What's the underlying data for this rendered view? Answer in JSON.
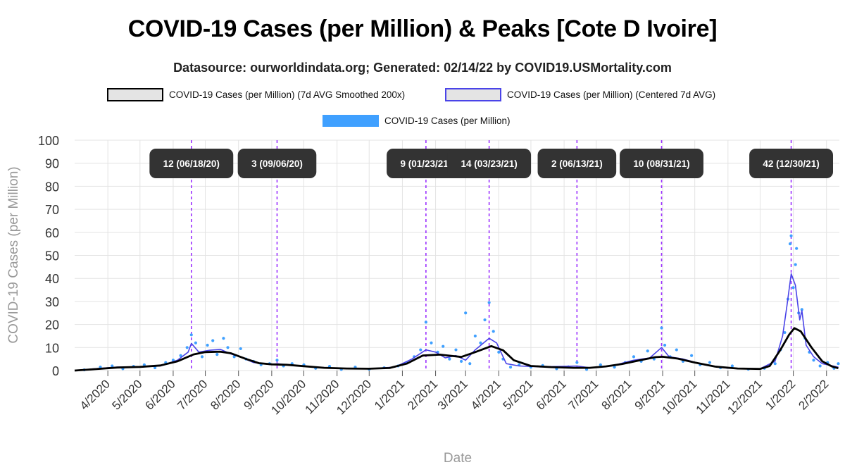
{
  "header": {
    "title": "COVID-19 Cases (per Million) & Peaks [Cote D Ivoire]",
    "subtitle": "Datasource: ourworldindata.org; Generated: 02/14/22 by COVID19.USMortality.com"
  },
  "legend": {
    "smoothed": "COVID-19 Cases (per Million) (7d AVG Smoothed 200x)",
    "centered": "COVID-19 Cases (per Million) (Centered 7d AVG)",
    "daily": "COVID-19 Cases (per Million)"
  },
  "colors": {
    "smoothed": "#000000",
    "centered": "#4a44e8",
    "daily": "#3fa0ff",
    "peak_line": "#9b30ff",
    "peak_label_bg": "#333333",
    "grid": "#e3e3e3",
    "axis_text": "#999999"
  },
  "chart_data": {
    "type": "line",
    "title": "COVID-19 Cases (per Million) & Peaks [Cote D Ivoire]",
    "xlabel": "Date",
    "ylabel": "COVID-19 Cases (per Million)",
    "ylim": [
      0,
      100
    ],
    "xlim": [
      "2020-03-01",
      "2022-02-13"
    ],
    "y_ticks": [
      0,
      10,
      20,
      30,
      40,
      50,
      60,
      70,
      80,
      90,
      100
    ],
    "x_ticks": [
      {
        "date": "2020-04-01",
        "label": "4/2020"
      },
      {
        "date": "2020-05-01",
        "label": "5/2020"
      },
      {
        "date": "2020-06-01",
        "label": "6/2020"
      },
      {
        "date": "2020-07-01",
        "label": "7/2020"
      },
      {
        "date": "2020-08-01",
        "label": "8/2020"
      },
      {
        "date": "2020-09-01",
        "label": "9/2020"
      },
      {
        "date": "2020-10-01",
        "label": "10/2020"
      },
      {
        "date": "2020-11-01",
        "label": "11/2020"
      },
      {
        "date": "2020-12-01",
        "label": "12/2020"
      },
      {
        "date": "2021-01-01",
        "label": "1/2021"
      },
      {
        "date": "2021-02-01",
        "label": "2/2021"
      },
      {
        "date": "2021-03-01",
        "label": "3/2021"
      },
      {
        "date": "2021-04-01",
        "label": "4/2021"
      },
      {
        "date": "2021-05-01",
        "label": "5/2021"
      },
      {
        "date": "2021-06-01",
        "label": "6/2021"
      },
      {
        "date": "2021-07-01",
        "label": "7/2021"
      },
      {
        "date": "2021-08-01",
        "label": "8/2021"
      },
      {
        "date": "2021-09-01",
        "label": "9/2021"
      },
      {
        "date": "2021-10-01",
        "label": "10/2021"
      },
      {
        "date": "2021-11-01",
        "label": "11/2021"
      },
      {
        "date": "2021-12-01",
        "label": "12/2021"
      },
      {
        "date": "2022-01-01",
        "label": "1/2022"
      },
      {
        "date": "2022-02-01",
        "label": "2/2022"
      }
    ],
    "grid": true,
    "legend_position": "top",
    "peaks": [
      {
        "date": "2020-06-18",
        "value": 12,
        "label": "12 (06/18/20)"
      },
      {
        "date": "2020-09-06",
        "value": 3,
        "label": "3 (09/06/20)"
      },
      {
        "date": "2021-01-23",
        "value": 9,
        "label": "9 (01/23/21)"
      },
      {
        "date": "2021-03-23",
        "value": 14,
        "label": "14 (03/23/21)"
      },
      {
        "date": "2021-06-13",
        "value": 2,
        "label": "2 (06/13/21)"
      },
      {
        "date": "2021-08-31",
        "value": 10,
        "label": "10 (08/31/21)"
      },
      {
        "date": "2021-12-30",
        "value": 42,
        "label": "42 (12/30/21)"
      }
    ],
    "series": [
      {
        "name": "COVID-19 Cases (per Million) (7d AVG Smoothed 200x)",
        "style": "line",
        "points": [
          [
            "2020-03-01",
            0.0
          ],
          [
            "2020-03-20",
            0.6
          ],
          [
            "2020-04-10",
            1.3
          ],
          [
            "2020-05-01",
            1.6
          ],
          [
            "2020-05-20",
            2.2
          ],
          [
            "2020-06-05",
            4.0
          ],
          [
            "2020-06-20",
            7.0
          ],
          [
            "2020-07-01",
            8.0
          ],
          [
            "2020-07-15",
            8.2
          ],
          [
            "2020-07-25",
            7.5
          ],
          [
            "2020-08-08",
            5.0
          ],
          [
            "2020-08-20",
            3.2
          ],
          [
            "2020-09-01",
            2.7
          ],
          [
            "2020-09-15",
            2.5
          ],
          [
            "2020-10-01",
            1.9
          ],
          [
            "2020-10-20",
            1.2
          ],
          [
            "2020-11-10",
            0.9
          ],
          [
            "2020-12-01",
            0.8
          ],
          [
            "2020-12-20",
            1.1
          ],
          [
            "2021-01-05",
            3.0
          ],
          [
            "2021-01-20",
            6.5
          ],
          [
            "2021-02-05",
            6.9
          ],
          [
            "2021-02-25",
            5.9
          ],
          [
            "2021-03-10",
            8.0
          ],
          [
            "2021-03-25",
            10.6
          ],
          [
            "2021-04-05",
            8.8
          ],
          [
            "2021-04-15",
            4.5
          ],
          [
            "2021-05-01",
            2.0
          ],
          [
            "2021-05-20",
            1.5
          ],
          [
            "2021-06-10",
            1.2
          ],
          [
            "2021-06-25",
            1.2
          ],
          [
            "2021-07-10",
            1.8
          ],
          [
            "2021-07-25",
            2.8
          ],
          [
            "2021-08-10",
            4.4
          ],
          [
            "2021-08-25",
            5.8
          ],
          [
            "2021-09-01",
            6.0
          ],
          [
            "2021-09-15",
            5.2
          ],
          [
            "2021-10-01",
            3.5
          ],
          [
            "2021-10-20",
            1.7
          ],
          [
            "2021-11-10",
            0.9
          ],
          [
            "2021-12-01",
            0.7
          ],
          [
            "2021-12-10",
            2.0
          ],
          [
            "2021-12-20",
            9.0
          ],
          [
            "2021-12-28",
            15.5
          ],
          [
            "2022-01-02",
            18.4
          ],
          [
            "2022-01-08",
            17.0
          ],
          [
            "2022-01-18",
            10.0
          ],
          [
            "2022-01-28",
            4.0
          ],
          [
            "2022-02-06",
            1.8
          ],
          [
            "2022-02-12",
            1.0
          ]
        ]
      },
      {
        "name": "COVID-19 Cases (per Million) (Centered 7d AVG)",
        "style": "line",
        "points": [
          [
            "2020-03-01",
            0.0
          ],
          [
            "2020-03-20",
            0.8
          ],
          [
            "2020-04-10",
            1.5
          ],
          [
            "2020-05-01",
            1.5
          ],
          [
            "2020-05-20",
            2.0
          ],
          [
            "2020-06-05",
            4.5
          ],
          [
            "2020-06-15",
            8.0
          ],
          [
            "2020-06-18",
            11.8
          ],
          [
            "2020-06-25",
            8.0
          ],
          [
            "2020-07-05",
            8.8
          ],
          [
            "2020-07-15",
            9.2
          ],
          [
            "2020-07-25",
            7.2
          ],
          [
            "2020-08-05",
            5.5
          ],
          [
            "2020-08-15",
            3.5
          ],
          [
            "2020-09-01",
            2.5
          ],
          [
            "2020-09-06",
            3.0
          ],
          [
            "2020-09-20",
            2.2
          ],
          [
            "2020-10-10",
            1.5
          ],
          [
            "2020-11-01",
            1.0
          ],
          [
            "2020-12-01",
            0.8
          ],
          [
            "2020-12-25",
            1.5
          ],
          [
            "2021-01-10",
            5.0
          ],
          [
            "2021-01-23",
            9.0
          ],
          [
            "2021-02-01",
            8.0
          ],
          [
            "2021-02-10",
            5.5
          ],
          [
            "2021-02-20",
            6.5
          ],
          [
            "2021-03-01",
            4.5
          ],
          [
            "2021-03-10",
            9.0
          ],
          [
            "2021-03-23",
            14.0
          ],
          [
            "2021-03-30",
            12.0
          ],
          [
            "2021-04-08",
            3.0
          ],
          [
            "2021-04-20",
            2.0
          ],
          [
            "2021-05-10",
            1.6
          ],
          [
            "2021-06-13",
            2.0
          ],
          [
            "2021-06-25",
            1.2
          ],
          [
            "2021-07-15",
            2.0
          ],
          [
            "2021-08-05",
            4.5
          ],
          [
            "2021-08-20",
            5.5
          ],
          [
            "2021-08-31",
            10.0
          ],
          [
            "2021-09-07",
            6.0
          ],
          [
            "2021-09-20",
            5.0
          ],
          [
            "2021-10-10",
            2.5
          ],
          [
            "2021-11-01",
            1.0
          ],
          [
            "2021-12-01",
            0.8
          ],
          [
            "2021-12-15",
            4.0
          ],
          [
            "2021-12-22",
            15.0
          ],
          [
            "2021-12-26",
            28.0
          ],
          [
            "2021-12-30",
            42.0
          ],
          [
            "2022-01-03",
            37.0
          ],
          [
            "2022-01-07",
            22.0
          ],
          [
            "2022-01-09",
            26.0
          ],
          [
            "2022-01-13",
            11.0
          ],
          [
            "2022-01-20",
            6.0
          ],
          [
            "2022-01-28",
            3.0
          ],
          [
            "2022-02-12",
            1.5
          ]
        ]
      },
      {
        "name": "COVID-19 Cases (per Million)",
        "style": "scatter",
        "points": [
          [
            "2020-03-10",
            0.3
          ],
          [
            "2020-03-25",
            1.5
          ],
          [
            "2020-04-05",
            2.0
          ],
          [
            "2020-04-15",
            0.8
          ],
          [
            "2020-04-25",
            1.8
          ],
          [
            "2020-05-05",
            2.5
          ],
          [
            "2020-05-15",
            1.2
          ],
          [
            "2020-05-25",
            3.5
          ],
          [
            "2020-06-01",
            4.5
          ],
          [
            "2020-06-08",
            6.5
          ],
          [
            "2020-06-14",
            10.0
          ],
          [
            "2020-06-18",
            15.5
          ],
          [
            "2020-06-22",
            12.0
          ],
          [
            "2020-06-28",
            6.0
          ],
          [
            "2020-07-03",
            11.0
          ],
          [
            "2020-07-08",
            13.0
          ],
          [
            "2020-07-12",
            7.0
          ],
          [
            "2020-07-18",
            14.0
          ],
          [
            "2020-07-22",
            10.0
          ],
          [
            "2020-07-28",
            6.0
          ],
          [
            "2020-08-03",
            9.5
          ],
          [
            "2020-08-08",
            5.0
          ],
          [
            "2020-08-15",
            4.0
          ],
          [
            "2020-08-22",
            2.5
          ],
          [
            "2020-08-30",
            3.0
          ],
          [
            "2020-09-06",
            4.5
          ],
          [
            "2020-09-12",
            2.0
          ],
          [
            "2020-09-20",
            3.0
          ],
          [
            "2020-10-01",
            2.5
          ],
          [
            "2020-10-12",
            1.0
          ],
          [
            "2020-10-25",
            1.8
          ],
          [
            "2020-11-05",
            0.5
          ],
          [
            "2020-11-18",
            1.5
          ],
          [
            "2020-12-01",
            0.6
          ],
          [
            "2020-12-15",
            1.2
          ],
          [
            "2020-12-28",
            2.0
          ],
          [
            "2021-01-05",
            3.5
          ],
          [
            "2021-01-12",
            6.0
          ],
          [
            "2021-01-18",
            9.0
          ],
          [
            "2021-01-23",
            21.0
          ],
          [
            "2021-01-28",
            12.0
          ],
          [
            "2021-02-03",
            8.0
          ],
          [
            "2021-02-08",
            10.5
          ],
          [
            "2021-02-14",
            5.0
          ],
          [
            "2021-02-20",
            9.0
          ],
          [
            "2021-02-25",
            4.0
          ],
          [
            "2021-03-01",
            25.0
          ],
          [
            "2021-03-05",
            3.0
          ],
          [
            "2021-03-10",
            15.0
          ],
          [
            "2021-03-15",
            12.0
          ],
          [
            "2021-03-19",
            22.0
          ],
          [
            "2021-03-23",
            29.5
          ],
          [
            "2021-03-27",
            17.0
          ],
          [
            "2021-04-01",
            8.0
          ],
          [
            "2021-04-05",
            5.0
          ],
          [
            "2021-04-12",
            1.5
          ],
          [
            "2021-04-20",
            2.5
          ],
          [
            "2021-05-01",
            1.5
          ],
          [
            "2021-05-12",
            2.2
          ],
          [
            "2021-05-25",
            0.8
          ],
          [
            "2021-06-05",
            1.6
          ],
          [
            "2021-06-13",
            3.5
          ],
          [
            "2021-06-22",
            0.5
          ],
          [
            "2021-07-05",
            2.5
          ],
          [
            "2021-07-18",
            1.5
          ],
          [
            "2021-07-28",
            3.5
          ],
          [
            "2021-08-05",
            6.0
          ],
          [
            "2021-08-12",
            4.0
          ],
          [
            "2021-08-18",
            8.5
          ],
          [
            "2021-08-24",
            5.0
          ],
          [
            "2021-08-31",
            18.5
          ],
          [
            "2021-09-03",
            11.0
          ],
          [
            "2021-09-08",
            6.0
          ],
          [
            "2021-09-14",
            9.0
          ],
          [
            "2021-09-20",
            4.0
          ],
          [
            "2021-09-28",
            6.5
          ],
          [
            "2021-10-06",
            2.5
          ],
          [
            "2021-10-15",
            3.5
          ],
          [
            "2021-10-25",
            1.2
          ],
          [
            "2021-11-05",
            2.0
          ],
          [
            "2021-11-20",
            0.6
          ],
          [
            "2021-12-05",
            1.0
          ],
          [
            "2021-12-15",
            3.0
          ],
          [
            "2021-12-20",
            9.0
          ],
          [
            "2021-12-24",
            16.5
          ],
          [
            "2021-12-27",
            31.0
          ],
          [
            "2021-12-29",
            55.0
          ],
          [
            "2021-12-30",
            58.5
          ],
          [
            "2022-01-01",
            36.0
          ],
          [
            "2022-01-03",
            46.0
          ],
          [
            "2022-01-04",
            53.0
          ],
          [
            "2022-01-06",
            25.0
          ],
          [
            "2022-01-09",
            26.5
          ],
          [
            "2022-01-12",
            14.0
          ],
          [
            "2022-01-16",
            8.0
          ],
          [
            "2022-01-20",
            4.5
          ],
          [
            "2022-01-26",
            2.0
          ],
          [
            "2022-02-02",
            3.5
          ],
          [
            "2022-02-08",
            1.0
          ],
          [
            "2022-02-12",
            3.0
          ]
        ]
      }
    ]
  }
}
